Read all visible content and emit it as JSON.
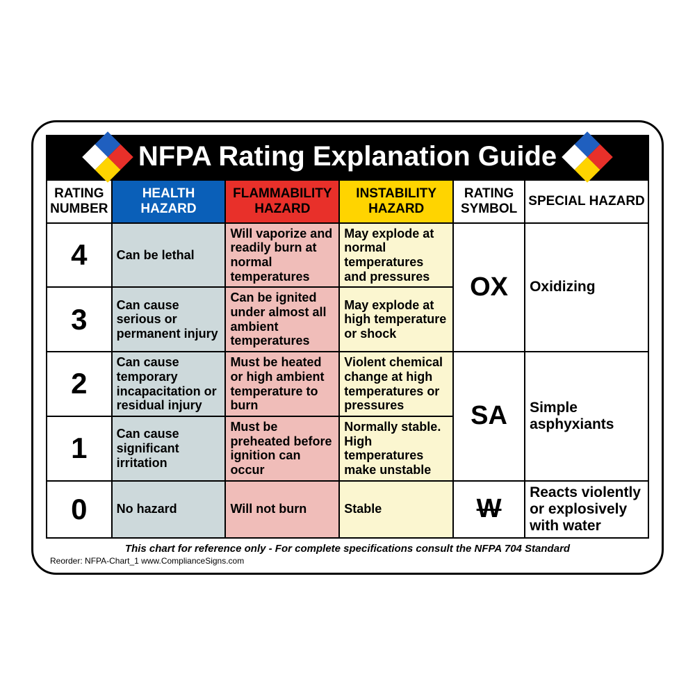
{
  "title": "NFPA Rating Explanation Guide",
  "diamond_colors": {
    "top": "#e8302a",
    "left": "#1f5fbf",
    "right": "#ffd400",
    "bottom": "#ffffff"
  },
  "headers": {
    "rating_number": "RATING NUMBER",
    "health": "HEALTH HAZARD",
    "flammability": "FLAMMABILITY HAZARD",
    "instability": "INSTABILITY HAZARD",
    "rating_symbol": "RATING SYMBOL",
    "special": "SPECIAL HAZARD"
  },
  "header_colors": {
    "rating_number_bg": "#ffffff",
    "rating_number_fg": "#000000",
    "health_bg": "#0a5fb8",
    "health_fg": "#ffffff",
    "flammability_bg": "#e8302a",
    "flammability_fg": "#000000",
    "instability_bg": "#ffd400",
    "instability_fg": "#000000",
    "rating_symbol_bg": "#ffffff",
    "rating_symbol_fg": "#000000",
    "special_bg": "#ffffff",
    "special_fg": "#000000"
  },
  "col_colors": {
    "health": "#cdd9db",
    "flammability": "#f0bdb9",
    "instability": "#fbf6d0"
  },
  "rows": [
    {
      "n": "4",
      "health": "Can be lethal",
      "flam": "Will vaporize and readily burn at normal temperatures",
      "inst": "May explode at normal temperatures and pressures"
    },
    {
      "n": "3",
      "health": "Can cause serious or permanent injury",
      "flam": "Can be ignited under almost all ambient temperatures",
      "inst": "May explode at high temperature or shock"
    },
    {
      "n": "2",
      "health": "Can cause temporary incapacitation or residual injury",
      "flam": "Must be heated or high ambient temperature to burn",
      "inst": "Violent chemical change at high temperatures or pressures"
    },
    {
      "n": "1",
      "health": "Can cause significant irritation",
      "flam": "Must be preheated before ignition can occur",
      "inst": "Normally stable. High temperatures make unstable"
    },
    {
      "n": "0",
      "health": "No hazard",
      "flam": "Will not burn",
      "inst": "Stable"
    }
  ],
  "special_rows": [
    {
      "sym": "OX",
      "desc": "Oxidizing",
      "strike": false
    },
    {
      "sym": "SA",
      "desc": "Simple asphyxiants",
      "strike": false
    },
    {
      "sym": "W",
      "desc": "Reacts violently or explosively with water",
      "strike": true
    }
  ],
  "footer": "This chart for reference only - For complete specifications consult the NFPA 704 Standard",
  "reorder": "Reorder: NFPA-Chart_1 www.ComplianceSigns.com"
}
